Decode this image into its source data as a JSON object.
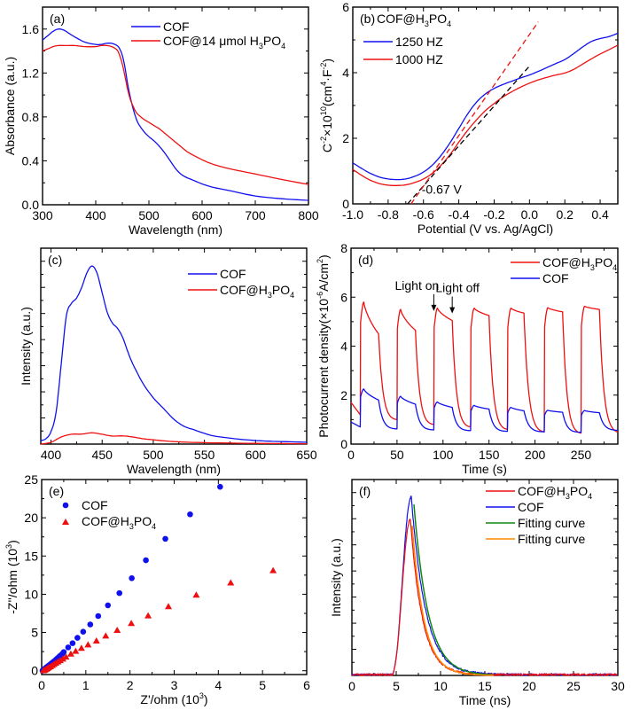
{
  "figure": {
    "panels_order": [
      "a",
      "b",
      "c",
      "d",
      "e",
      "f"
    ]
  },
  "chart_data": [
    {
      "id": "a",
      "panel_label": "(a)",
      "type": "line",
      "title": "",
      "xlabel": "Wavelength (nm)",
      "ylabel": "Absorbance (a.u.)",
      "xlim": [
        300,
        800
      ],
      "ylim": [
        0.0,
        1.8
      ],
      "xticks": [
        300,
        400,
        500,
        600,
        700,
        800
      ],
      "xtick_labels": [
        "300",
        "400",
        "500",
        "600",
        "700",
        "800"
      ],
      "yticks": [
        0.0,
        0.4,
        0.8,
        1.2,
        1.6
      ],
      "ytick_labels": [
        "0.0",
        "0.4",
        "0.8",
        "1.2",
        "1.6"
      ],
      "legend_position": "top-right",
      "series": [
        {
          "name": "COF",
          "legend": "COF",
          "color": "#1010ee",
          "x": [
            300,
            310,
            320,
            330,
            340,
            350,
            360,
            380,
            400,
            410,
            420,
            430,
            440,
            445,
            450,
            455,
            460,
            465,
            470,
            475,
            480,
            490,
            500,
            510,
            520,
            530,
            540,
            550,
            560,
            570,
            580,
            600,
            620,
            650,
            700,
            750,
            800
          ],
          "y": [
            1.5,
            1.54,
            1.58,
            1.6,
            1.59,
            1.56,
            1.53,
            1.48,
            1.46,
            1.46,
            1.47,
            1.47,
            1.45,
            1.42,
            1.36,
            1.25,
            1.1,
            0.98,
            0.88,
            0.8,
            0.74,
            0.67,
            0.62,
            0.58,
            0.53,
            0.47,
            0.4,
            0.33,
            0.28,
            0.25,
            0.23,
            0.19,
            0.16,
            0.13,
            0.08,
            0.055,
            0.04
          ]
        },
        {
          "name": "COF@14 μmol H3PO4",
          "legend": "COF@14 μmol H₃PO₄",
          "color": "#ee1010",
          "x": [
            300,
            310,
            320,
            330,
            340,
            350,
            360,
            380,
            400,
            410,
            420,
            430,
            440,
            445,
            450,
            455,
            460,
            465,
            470,
            475,
            480,
            490,
            500,
            510,
            520,
            530,
            540,
            550,
            560,
            570,
            580,
            600,
            620,
            650,
            700,
            750,
            800
          ],
          "y": [
            1.4,
            1.42,
            1.44,
            1.45,
            1.45,
            1.45,
            1.45,
            1.44,
            1.44,
            1.45,
            1.45,
            1.44,
            1.41,
            1.36,
            1.28,
            1.17,
            1.05,
            0.96,
            0.9,
            0.85,
            0.82,
            0.78,
            0.75,
            0.72,
            0.69,
            0.65,
            0.61,
            0.57,
            0.53,
            0.49,
            0.46,
            0.41,
            0.37,
            0.33,
            0.28,
            0.23,
            0.185
          ]
        }
      ]
    },
    {
      "id": "b",
      "panel_label": "(b)",
      "panel_title": "COF@H₃PO₄",
      "type": "line",
      "xlabel": "Potential (V vs. Ag/AgCl)",
      "ylabel": "C⁻²×10¹⁰(cm⁴·F⁻²)",
      "xlim": [
        -1.0,
        0.5
      ],
      "ylim": [
        0,
        6
      ],
      "xticks": [
        -1.0,
        -0.8,
        -0.6,
        -0.4,
        -0.2,
        0.0,
        0.2,
        0.4
      ],
      "xtick_labels": [
        "-1.0",
        "-0.8",
        "-0.6",
        "-0.4",
        "-0.2",
        "0.0",
        "0.2",
        "0.4"
      ],
      "yticks": [
        0,
        2,
        4,
        6
      ],
      "ytick_labels": [
        "0",
        "2",
        "4",
        "6"
      ],
      "legend_position": "top-left",
      "annotation": "-0.67 V",
      "series": [
        {
          "name": "1250 HZ",
          "legend": "1250 HZ",
          "color": "#1010ee",
          "x": [
            -1.0,
            -0.95,
            -0.9,
            -0.85,
            -0.8,
            -0.75,
            -0.7,
            -0.65,
            -0.6,
            -0.55,
            -0.5,
            -0.45,
            -0.4,
            -0.35,
            -0.3,
            -0.25,
            -0.2,
            -0.15,
            -0.1,
            -0.05,
            0.0,
            0.05,
            0.1,
            0.15,
            0.2,
            0.25,
            0.3,
            0.35,
            0.4,
            0.45,
            0.5
          ],
          "y": [
            1.25,
            1.08,
            0.93,
            0.82,
            0.76,
            0.74,
            0.76,
            0.84,
            0.97,
            1.18,
            1.48,
            1.86,
            2.3,
            2.74,
            3.1,
            3.35,
            3.52,
            3.64,
            3.74,
            3.84,
            3.93,
            4.04,
            4.16,
            4.28,
            4.4,
            4.58,
            4.78,
            4.95,
            5.04,
            5.1,
            5.2
          ]
        },
        {
          "name": "1000 HZ",
          "legend": "1000 HZ",
          "color": "#ee1010",
          "x": [
            -1.0,
            -0.95,
            -0.9,
            -0.85,
            -0.8,
            -0.75,
            -0.7,
            -0.65,
            -0.6,
            -0.55,
            -0.5,
            -0.45,
            -0.4,
            -0.35,
            -0.3,
            -0.25,
            -0.2,
            -0.15,
            -0.1,
            -0.05,
            0.0,
            0.05,
            0.1,
            0.15,
            0.2,
            0.25,
            0.3,
            0.35,
            0.4,
            0.45,
            0.5
          ],
          "y": [
            1.05,
            0.87,
            0.72,
            0.62,
            0.57,
            0.56,
            0.58,
            0.65,
            0.76,
            0.93,
            1.18,
            1.5,
            1.88,
            2.24,
            2.56,
            2.84,
            3.06,
            3.26,
            3.42,
            3.56,
            3.68,
            3.78,
            3.86,
            3.93,
            3.99,
            4.1,
            4.26,
            4.42,
            4.57,
            4.7,
            4.84
          ]
        }
      ],
      "fit_lines": [
        {
          "name": "1000 HZ tangent",
          "color": "#000000",
          "x": [
            -0.69,
            0.0
          ],
          "y": [
            0.0,
            4.2
          ]
        },
        {
          "name": "1250 HZ tangent",
          "color": "#ee1010",
          "x": [
            -0.67,
            0.05
          ],
          "y": [
            0.0,
            5.55
          ]
        }
      ]
    },
    {
      "id": "c",
      "panel_label": "(c)",
      "type": "line",
      "xlabel": "Wavelength (nm)",
      "ylabel": "Intensity (a.u.)",
      "xlim": [
        390,
        650
      ],
      "ylim": [
        0,
        1.1
      ],
      "xticks": [
        400,
        450,
        500,
        550,
        600,
        650
      ],
      "xtick_labels": [
        "400",
        "450",
        "500",
        "550",
        "600",
        "650"
      ],
      "yticks": [],
      "ytick_labels": [],
      "legend_position": "top-right",
      "series": [
        {
          "name": "COF",
          "legend": "COF",
          "color": "#1010ee",
          "x": [
            390,
            395,
            400,
            405,
            410,
            415,
            420,
            425,
            430,
            435,
            440,
            445,
            450,
            455,
            460,
            465,
            470,
            475,
            480,
            490,
            500,
            510,
            520,
            530,
            540,
            550,
            560,
            580,
            600,
            620,
            640,
            650
          ],
          "y": [
            0.02,
            0.03,
            0.07,
            0.18,
            0.45,
            0.72,
            0.79,
            0.82,
            0.88,
            0.96,
            1.0,
            0.96,
            0.85,
            0.74,
            0.68,
            0.65,
            0.6,
            0.52,
            0.45,
            0.34,
            0.26,
            0.2,
            0.14,
            0.1,
            0.08,
            0.06,
            0.045,
            0.03,
            0.02,
            0.015,
            0.012,
            0.01
          ]
        },
        {
          "name": "COF@H3PO4",
          "legend": "COF@H₃PO₄",
          "color": "#ee1010",
          "x": [
            390,
            400,
            410,
            420,
            430,
            440,
            450,
            460,
            470,
            480,
            490,
            500,
            520,
            550,
            600,
            650
          ],
          "y": [
            0.0,
            0.01,
            0.04,
            0.055,
            0.056,
            0.063,
            0.055,
            0.045,
            0.046,
            0.04,
            0.03,
            0.024,
            0.014,
            0.008,
            0.004,
            0.002
          ]
        }
      ]
    },
    {
      "id": "d",
      "panel_label": "(d)",
      "type": "line",
      "xlabel": "Time (s)",
      "ylabel": "Photocurrent density(×10⁻⁶A/cm²)",
      "xlim": [
        0,
        290
      ],
      "ylim": [
        0,
        8
      ],
      "xticks": [
        0,
        50,
        100,
        150,
        200,
        250
      ],
      "xtick_labels": [
        "0",
        "50",
        "100",
        "150",
        "200",
        "250"
      ],
      "yticks": [
        0,
        2,
        4,
        6,
        8
      ],
      "ytick_labels": [
        "0",
        "2",
        "4",
        "6",
        "8"
      ],
      "legend_position": "top-right",
      "annotations": [
        {
          "text": "Light on",
          "x": 90,
          "y": 5.4
        },
        {
          "text": "Light off",
          "x": 110,
          "y": 5.3
        }
      ],
      "light_on_times": [
        10,
        50,
        90,
        130,
        170,
        210,
        250
      ],
      "light_off_times": [
        30,
        70,
        110,
        150,
        188,
        230,
        270
      ],
      "series": [
        {
          "name": "COF@H3PO4",
          "legend": "COF@H₃PO₄",
          "color": "#ee1010",
          "baseline_start": 1.7,
          "cycles": [
            {
              "on": 10,
              "off": 30,
              "pre": 1.2,
              "peak": 5.8,
              "end": 4.5
            },
            {
              "on": 50,
              "off": 70,
              "pre": 1.0,
              "peak": 5.5,
              "end": 4.65
            },
            {
              "on": 90,
              "off": 110,
              "pre": 0.8,
              "peak": 5.55,
              "end": 5.05
            },
            {
              "on": 130,
              "off": 150,
              "pre": 0.7,
              "peak": 5.55,
              "end": 5.25
            },
            {
              "on": 170,
              "off": 188,
              "pre": 0.6,
              "peak": 5.55,
              "end": 5.35
            },
            {
              "on": 210,
              "off": 230,
              "pre": 0.5,
              "peak": 5.57,
              "end": 5.4
            },
            {
              "on": 250,
              "off": 270,
              "pre": 0.45,
              "peak": 5.63,
              "end": 5.5
            }
          ],
          "end_value": 0.42
        },
        {
          "name": "COF",
          "legend": "COF",
          "color": "#1010ee",
          "baseline_start": 0.9,
          "cycles": [
            {
              "on": 10,
              "off": 30,
              "pre": 0.7,
              "peak": 2.25,
              "end": 1.8
            },
            {
              "on": 50,
              "off": 70,
              "pre": 0.62,
              "peak": 1.95,
              "end": 1.63
            },
            {
              "on": 90,
              "off": 110,
              "pre": 0.58,
              "peak": 1.72,
              "end": 1.5
            },
            {
              "on": 130,
              "off": 150,
              "pre": 0.55,
              "peak": 1.58,
              "end": 1.43
            },
            {
              "on": 170,
              "off": 188,
              "pre": 0.52,
              "peak": 1.5,
              "end": 1.36
            },
            {
              "on": 210,
              "off": 230,
              "pre": 0.5,
              "peak": 1.38,
              "end": 1.3
            },
            {
              "on": 250,
              "off": 270,
              "pre": 0.48,
              "peak": 1.37,
              "end": 1.28
            }
          ],
          "end_value": 0.55
        }
      ]
    },
    {
      "id": "e",
      "panel_label": "(e)",
      "type": "scatter",
      "xlabel": "Z'/ohm (10³)",
      "ylabel": "-Z''/ohm (10³)",
      "xlim": [
        0,
        6
      ],
      "ylim": [
        -0.5,
        25
      ],
      "xticks": [
        0,
        1,
        2,
        3,
        4,
        5,
        6
      ],
      "xtick_labels": [
        "0",
        "1",
        "2",
        "3",
        "4",
        "5",
        "6"
      ],
      "yticks": [
        0,
        5,
        10,
        15,
        20,
        25
      ],
      "ytick_labels": [
        "0",
        "5",
        "10",
        "15",
        "20",
        "25"
      ],
      "legend_position": "top-left",
      "series": [
        {
          "name": "COF",
          "legend": "COF",
          "color": "#1010ee",
          "marker": "circle",
          "x": [
            0.02,
            0.04,
            0.06,
            0.08,
            0.1,
            0.12,
            0.15,
            0.18,
            0.21,
            0.24,
            0.27,
            0.3,
            0.33,
            0.36,
            0.39,
            0.42,
            0.46,
            0.5,
            0.6,
            0.7,
            0.81,
            0.94,
            1.1,
            1.28,
            1.5,
            1.76,
            2.04,
            2.36,
            2.8,
            3.36,
            4.04
          ],
          "y": [
            0.02,
            0.1,
            0.2,
            0.3,
            0.4,
            0.5,
            0.62,
            0.76,
            0.9,
            1.04,
            1.18,
            1.32,
            1.48,
            1.64,
            1.8,
            1.96,
            2.16,
            2.44,
            3.05,
            3.6,
            4.3,
            5.1,
            6.05,
            7.15,
            8.55,
            10.15,
            12.1,
            14.45,
            17.25,
            20.45,
            24.05
          ]
        },
        {
          "name": "COF@H3PO4",
          "legend": "COF@H₃PO₄",
          "color": "#ee1010",
          "marker": "triangle",
          "x": [
            0.04,
            0.07,
            0.1,
            0.13,
            0.16,
            0.2,
            0.24,
            0.28,
            0.32,
            0.37,
            0.42,
            0.48,
            0.55,
            0.66,
            0.77,
            0.9,
            1.05,
            1.24,
            1.45,
            1.71,
            2.03,
            2.41,
            2.87,
            3.5,
            4.28,
            5.24
          ],
          "y": [
            0.02,
            0.1,
            0.2,
            0.3,
            0.42,
            0.55,
            0.7,
            0.85,
            1.0,
            1.17,
            1.34,
            1.55,
            1.8,
            2.2,
            2.55,
            2.95,
            3.4,
            3.9,
            4.55,
            5.3,
            6.2,
            7.2,
            8.4,
            9.9,
            11.5,
            13.1
          ]
        }
      ]
    },
    {
      "id": "f",
      "panel_label": "(f)",
      "type": "line",
      "xlabel": "Time (ns)",
      "ylabel": "Intensity (a.u.)",
      "xlim": [
        0,
        30
      ],
      "ylim": [
        0,
        1.1
      ],
      "xticks": [
        0,
        5,
        10,
        15,
        20,
        25,
        30
      ],
      "xtick_labels": [
        "0",
        "5",
        "10",
        "15",
        "20",
        "25",
        "30"
      ],
      "yticks": [],
      "ytick_labels": [],
      "legend_position": "top-right",
      "series": [
        {
          "name": "COF@H3PO4",
          "legend": "COF@H₃PO₄",
          "color": "#ee1010",
          "peak_time": 6.6,
          "peak": 0.87,
          "rise_start": 4.5,
          "decay_tau": 1.35
        },
        {
          "name": "COF",
          "legend": "COF",
          "color": "#1010ee",
          "peak_time": 6.7,
          "peak": 1.0,
          "rise_start": 4.5,
          "decay_tau": 1.6
        },
        {
          "name": "Fitting curve (COF)",
          "legend": "Fitting curve",
          "color": "#118811",
          "peak_time": 7.0,
          "peak": 0.96,
          "decay_tau": 1.6,
          "fit_from": 7.0,
          "fit_to": 16
        },
        {
          "name": "Fitting curve (COF@H3PO4)",
          "legend": "Fitting curve",
          "color": "#ff8800",
          "peak_time": 6.8,
          "peak": 0.84,
          "decay_tau": 1.35,
          "fit_from": 6.8,
          "fit_to": 16
        }
      ]
    }
  ]
}
